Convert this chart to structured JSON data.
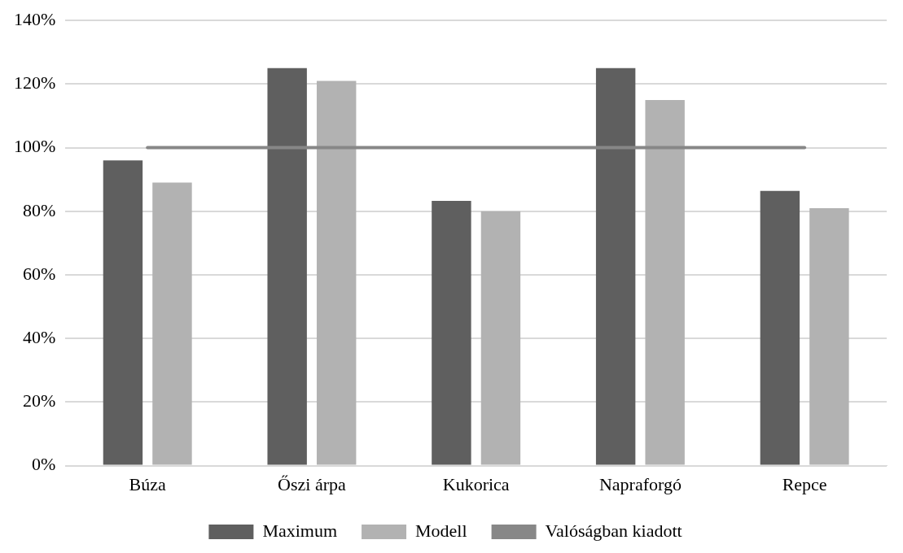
{
  "chart_data": {
    "type": "bar",
    "categories": [
      "Búza",
      "Őszi árpa",
      "Kukorica",
      "Napraforgó",
      "Repce"
    ],
    "series": [
      {
        "name": "Maximum",
        "color": "#5f5f5f",
        "values": [
          96,
          125,
          83.3,
          125,
          86.4
        ]
      },
      {
        "name": "Modell",
        "color": "#b2b2b2",
        "values": [
          89,
          121,
          80,
          115,
          81
        ]
      },
      {
        "name": "Valóságban kiadott",
        "type": "line",
        "color": "#878787",
        "values": [
          100,
          100,
          100,
          100,
          100
        ]
      }
    ],
    "ylim": [
      0,
      140
    ],
    "yticks": [
      {
        "value": 0,
        "label": "0%"
      },
      {
        "value": 20,
        "label": "20%"
      },
      {
        "value": 40,
        "label": "40%"
      },
      {
        "value": 60,
        "label": "60%"
      },
      {
        "value": 80,
        "label": "80%"
      },
      {
        "value": 100,
        "label": "100%"
      },
      {
        "value": 120,
        "label": "120%"
      },
      {
        "value": 140,
        "label": "140%"
      }
    ],
    "grid": "y",
    "legend": "bottom",
    "marker": "none"
  }
}
